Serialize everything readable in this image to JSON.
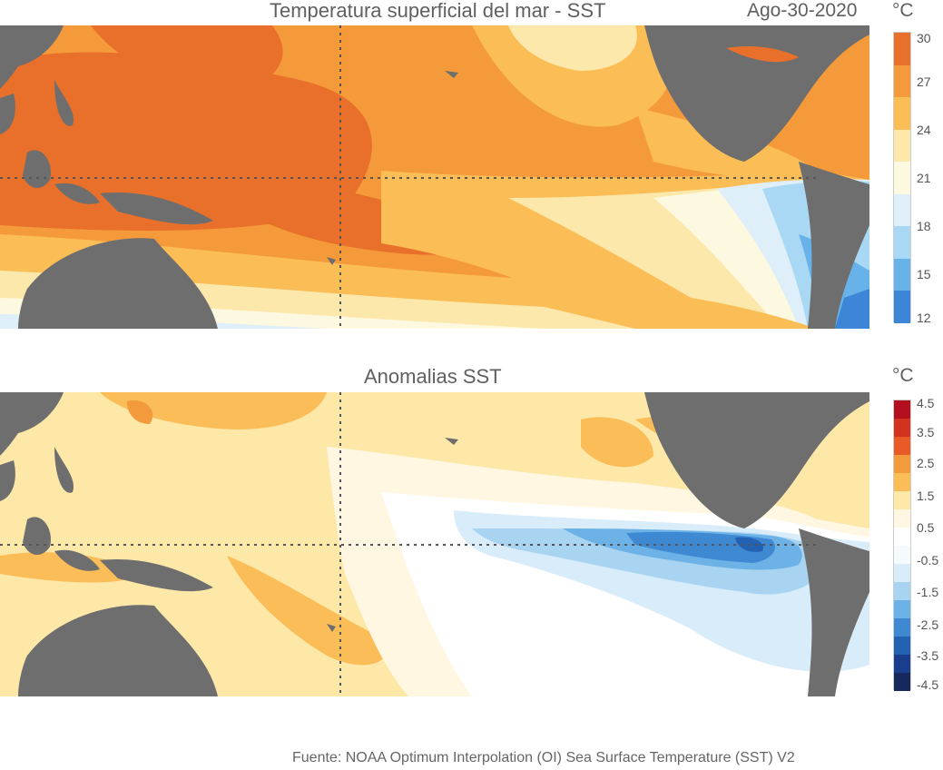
{
  "top_panel": {
    "title": "Temperatura superficial del mar - SST",
    "date": "Ago-30-2020",
    "unit": "°C",
    "colorbar": {
      "ticks": [
        "30",
        "27",
        "24",
        "21",
        "18",
        "15",
        "12"
      ],
      "colors": [
        "#e8702a",
        "#f59a3a",
        "#fbbd55",
        "#fde8ac",
        "#fdf8e0",
        "#dfeff9",
        "#a8d8f4",
        "#67b2e8",
        "#3d85d6"
      ]
    }
  },
  "bottom_panel": {
    "title": "Anomalias SST",
    "unit": "°C",
    "colorbar": {
      "ticks": [
        "4.5",
        "3.5",
        "2.5",
        "1.5",
        "0.5",
        "-0.5",
        "-1.5",
        "-2.5",
        "-3.5",
        "-4.5"
      ],
      "colors": [
        "#b40f1e",
        "#d2321e",
        "#e85a26",
        "#f39a3c",
        "#fbbd58",
        "#fde8a8",
        "#fff7e2",
        "#ffffff",
        "#f4fafe",
        "#d8ecfa",
        "#a8d4f2",
        "#6cb2e6",
        "#3f88d2",
        "#2361b3",
        "#1b3d8e",
        "#17295c"
      ]
    }
  },
  "colors": {
    "land": "#6e6e6e",
    "gridline": "#555555"
  },
  "source": "Fuente: NOAA Optimum Interpolation (OI) Sea Surface Temperature (SST) V2"
}
